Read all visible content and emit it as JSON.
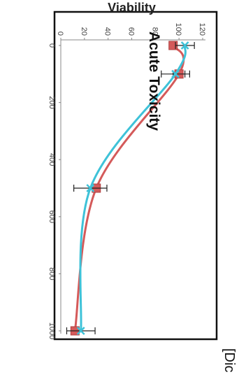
{
  "chart_data": {
    "type": "line",
    "title": "Acute Toxicity",
    "xlabel": "",
    "ylabel": "Viability",
    "corner_text": "[Dic",
    "xlim": [
      0,
      1000
    ],
    "ylim": [
      0,
      120
    ],
    "x_ticks": [
      0,
      200,
      400,
      600,
      800,
      1000
    ],
    "y_ticks": [
      0,
      20,
      40,
      60,
      80,
      100,
      120
    ],
    "grid": false,
    "orientation": "rotated 90 degrees clockwise",
    "series": [
      {
        "color": "#d45a5a",
        "marker": "square",
        "x": [
          0,
          100,
          500,
          1000
        ],
        "y": [
          95,
          100,
          30,
          12
        ],
        "error": [
          0,
          5,
          0,
          0
        ]
      },
      {
        "color": "#3ec2d8",
        "marker": "x",
        "x": [
          0,
          100,
          500,
          1000
        ],
        "y": [
          105,
          97,
          25,
          17
        ],
        "error": [
          8,
          12,
          14,
          12
        ]
      }
    ]
  }
}
